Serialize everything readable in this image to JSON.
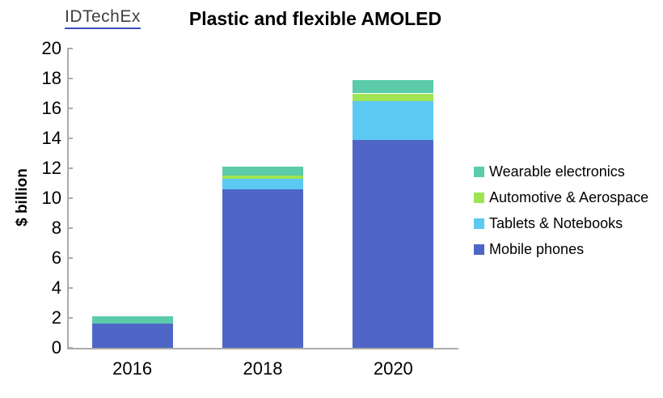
{
  "logo": {
    "text": "IDTechEx",
    "text_color": "#3f3f3f",
    "underline_color": "#3b4fc0"
  },
  "chart_data": {
    "type": "bar",
    "stacked": true,
    "title": "Plastic and flexible AMOLED",
    "ylabel": "$ billion",
    "xlabel": "",
    "categories": [
      "2016",
      "2018",
      "2020"
    ],
    "series": [
      {
        "name": "Mobile phones",
        "color": "#4f66c6",
        "values": [
          1.6,
          10.6,
          13.9
        ]
      },
      {
        "name": "Tablets & Notebooks",
        "color": "#5cc9f2",
        "values": [
          0,
          0.7,
          2.6
        ]
      },
      {
        "name": "Automotive & Aerospace",
        "color": "#a0e455",
        "values": [
          0,
          0.2,
          0.5
        ]
      },
      {
        "name": "Wearable electronics",
        "color": "#5bcbaa",
        "values": [
          0.5,
          0.6,
          0.9
        ]
      }
    ],
    "ylim": [
      0,
      20
    ],
    "ytick_step": 2,
    "grid": false,
    "legend_position": "right",
    "legend_order_top_to_bottom": [
      "Wearable electronics",
      "Automotive & Aerospace",
      "Tablets & Notebooks",
      "Mobile phones"
    ],
    "axis_color": "#acacac",
    "text_color": "#000000"
  }
}
